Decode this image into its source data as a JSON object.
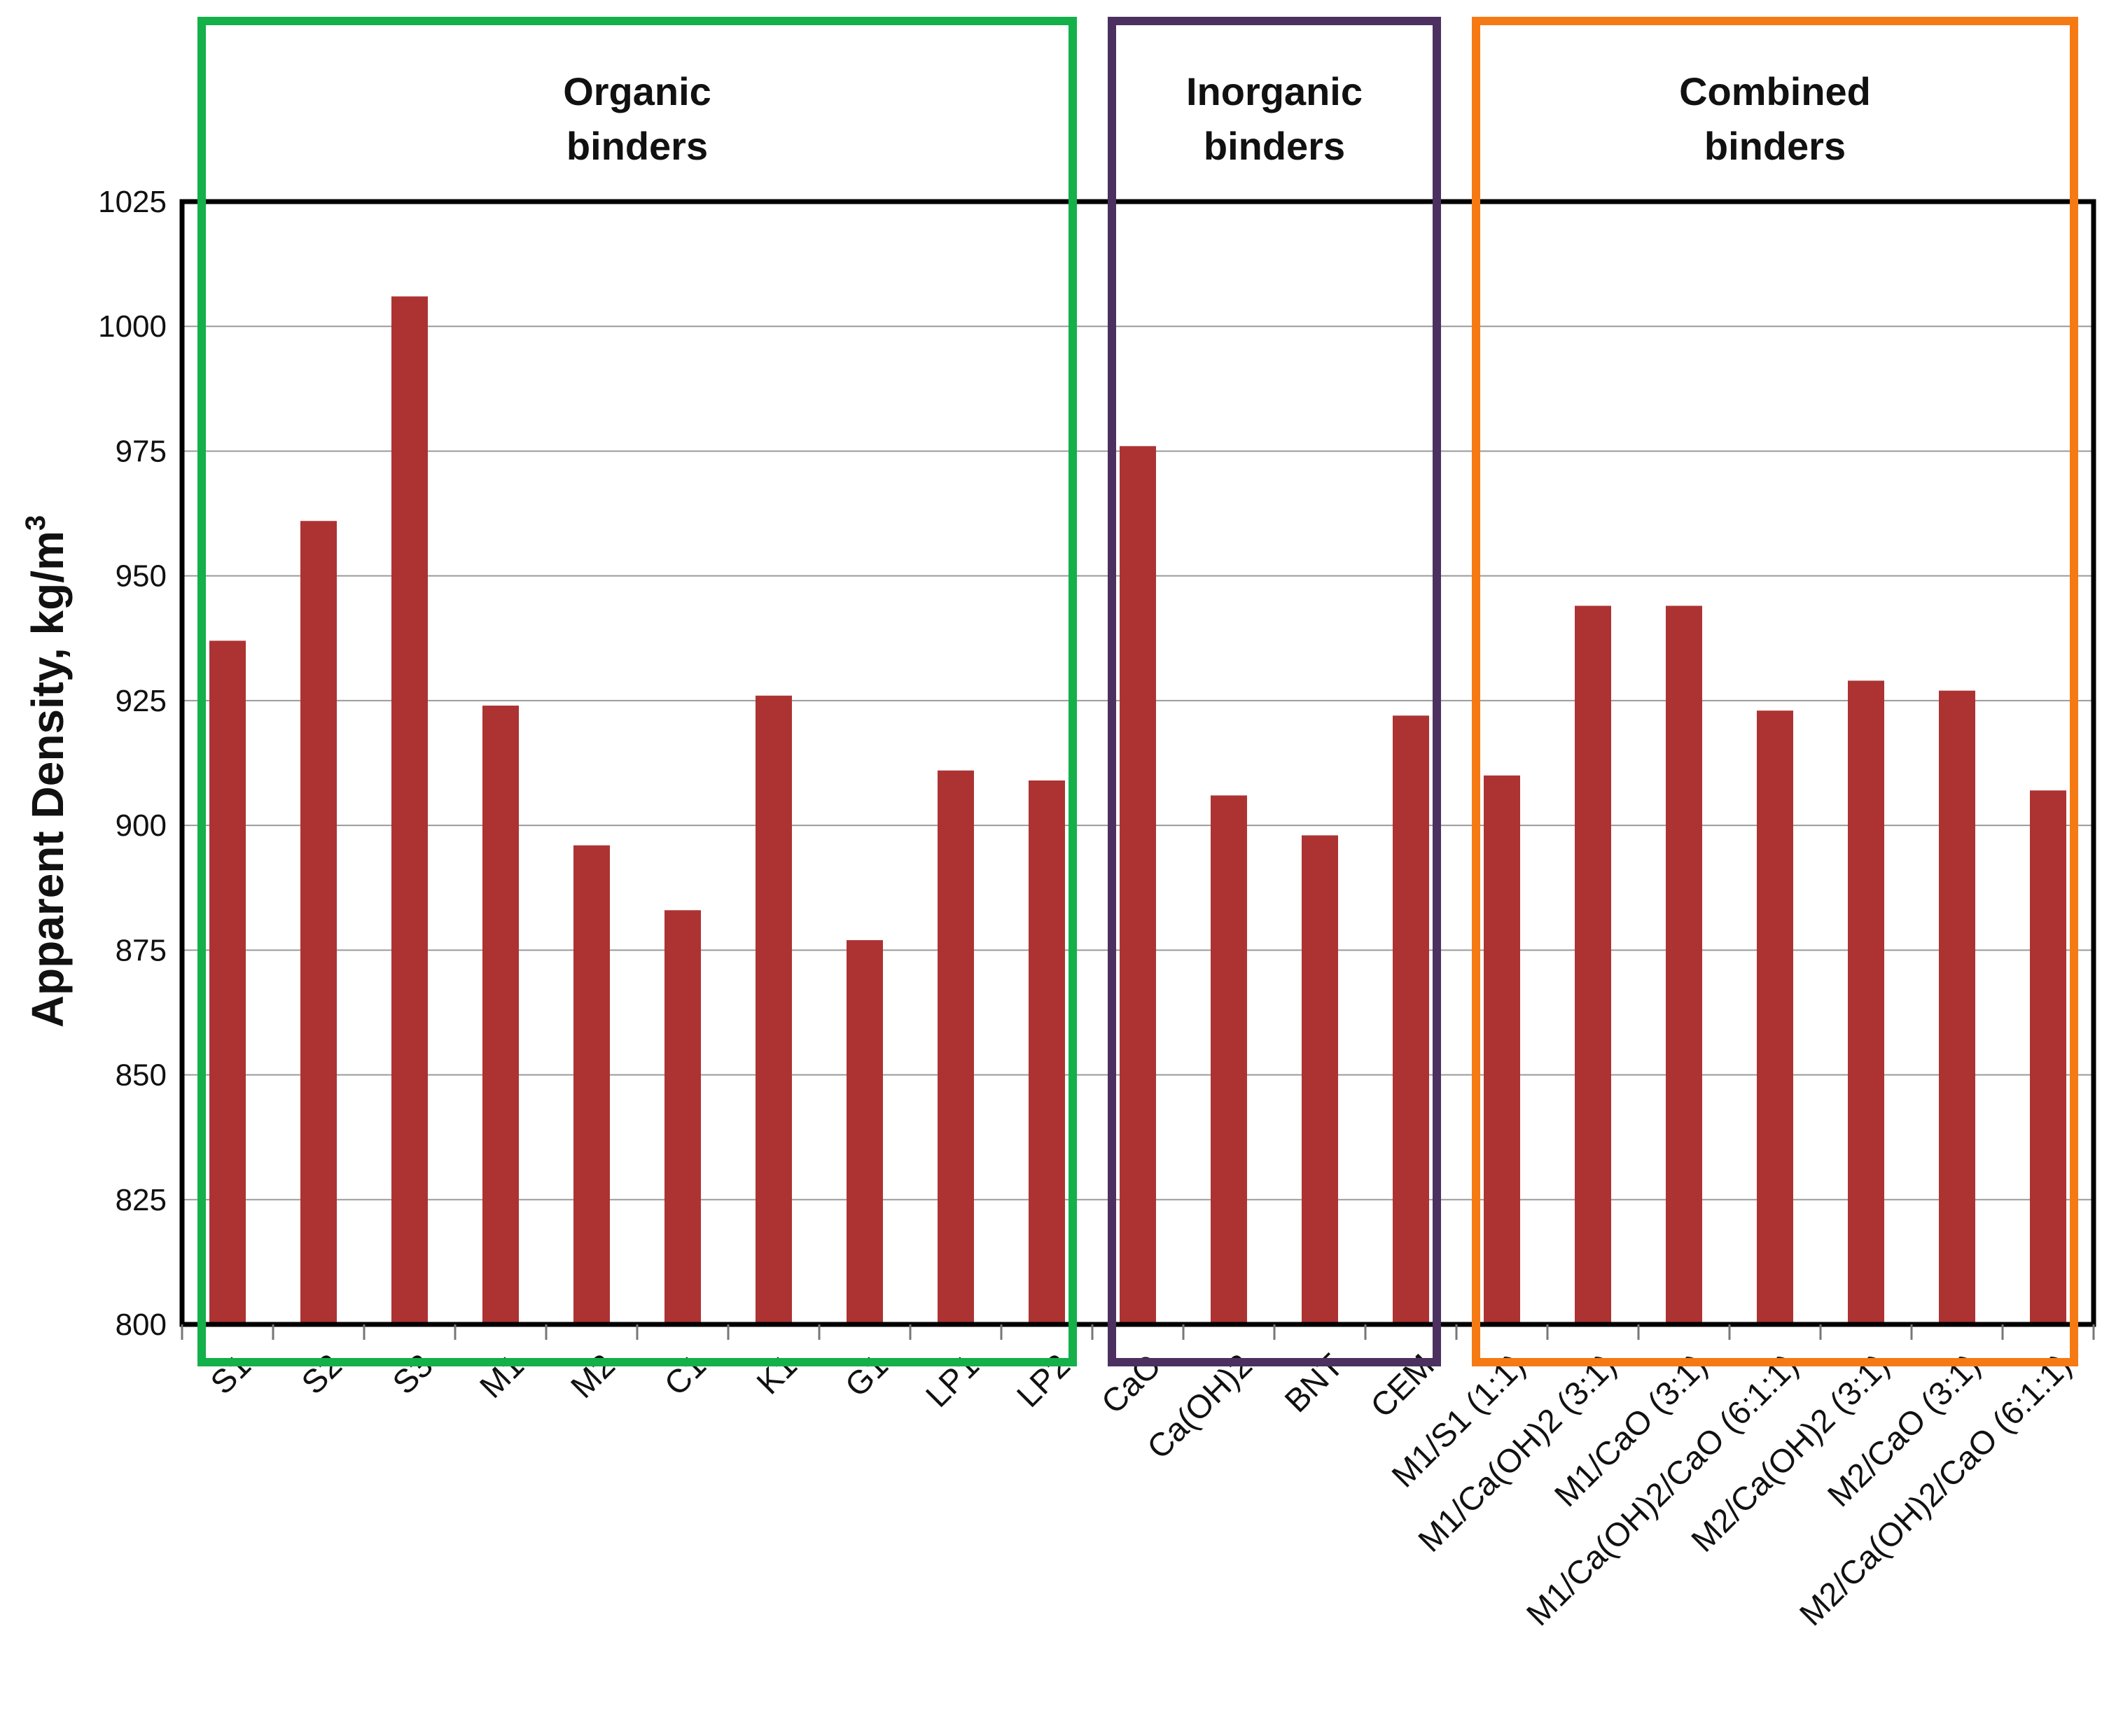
{
  "chart_data": {
    "type": "bar",
    "title": "",
    "xlabel": "",
    "ylabel": "Apparent Density, kg/m",
    "ylabel_superscript": "3",
    "ylim": [
      800,
      1025
    ],
    "yticks": [
      800,
      825,
      850,
      875,
      900,
      925,
      950,
      975,
      1000,
      1025
    ],
    "grid": true,
    "categories": [
      "S1",
      "S2",
      "S3",
      "M1",
      "M2",
      "C1",
      "K1",
      "G1",
      "LP1",
      "LP2",
      "CaO",
      "Ca(OH)2",
      "BNT",
      "CEM",
      "M1/S1 (1:1)",
      "M1/Ca(OH)2 (3:1)",
      "M1/CaO (3:1)",
      "M1/Ca(OH)2/CaO (6:1:1)",
      "M2/Ca(OH)2 (3:1)",
      "M2/CaO (3:1)",
      "M2/Ca(OH)2/CaO (6:1:1)"
    ],
    "values": [
      937,
      961,
      1006,
      924,
      896,
      883,
      926,
      877,
      911,
      909,
      976,
      906,
      898,
      922,
      910,
      944,
      944,
      923,
      929,
      927,
      907
    ],
    "bar_color": "#ad3333",
    "groups": [
      {
        "title_line1": "Organic",
        "title_line2": "binders",
        "first": 0,
        "last": 9,
        "color": "#14b04a"
      },
      {
        "title_line1": "Inorganic",
        "title_line2": "binders",
        "first": 10,
        "last": 13,
        "color": "#4b3060"
      },
      {
        "title_line1": "Combined",
        "title_line2": "binders",
        "first": 14,
        "last": 20,
        "color": "#f57a14"
      }
    ]
  }
}
